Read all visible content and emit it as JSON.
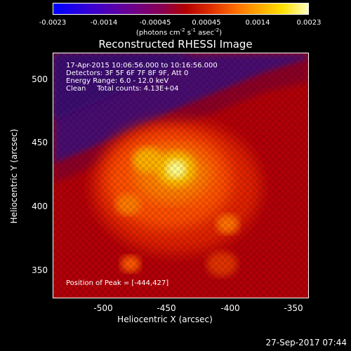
{
  "colorbar": {
    "ticks": [
      "-0.0023",
      "-0.0014",
      "-0.00045",
      "0.00045",
      "0.0014",
      "0.0023"
    ],
    "units_prefix": "(photons cm",
    "units_sup1": "-2",
    "units_mid": " s",
    "units_sup2": "-1",
    "units_mid2": " asec",
    "units_sup3": "-2",
    "units_suffix": ")"
  },
  "title": "Reconstructed RHESSI Image",
  "annotations": {
    "time_range": "17-Apr-2015 10:06:56.000 to 10:16:56.000",
    "detectors": "Detectors: 3F 5F 6F 7F 8F 9F, Att 0",
    "energy": "Energy Range: 6.0 - 12.0 keV",
    "algorithm": "Clean     Total counts: 4.13E+04",
    "peak": "Position of Peak = [-444,427]"
  },
  "axes": {
    "xlabel": "Heliocentric X (arcsec)",
    "ylabel": "Heliocentric Y (arcsec)",
    "xticks": [
      "-500",
      "-450",
      "-400",
      "-350"
    ],
    "yticks": [
      "500",
      "450",
      "400",
      "350"
    ]
  },
  "timestamp": "27-Sep-2017 07:44",
  "colors": {
    "background": "#000000",
    "dim": "#4a1070",
    "low": "#9a0010",
    "mid": "#ff4a00",
    "high": "#ffffd0"
  }
}
